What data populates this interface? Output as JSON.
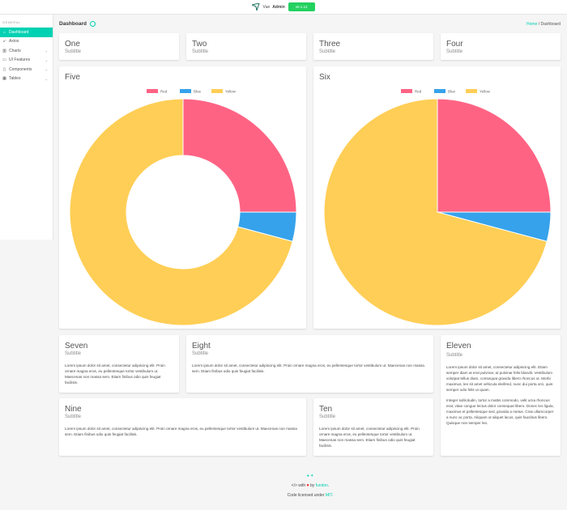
{
  "topbar": {
    "brand_prefix": "Vue",
    "brand_bold": "Admin",
    "version": "v0.1.12"
  },
  "sidebar": {
    "section": "GENERAL",
    "items": [
      {
        "label": "Dashboard",
        "icon": "home-icon",
        "active": true
      },
      {
        "label": "Axios",
        "icon": "rocket-icon"
      },
      {
        "label": "Charts",
        "icon": "bar-chart-icon",
        "expandable": true
      },
      {
        "label": "UI Features",
        "icon": "laptop-icon",
        "expandable": true
      },
      {
        "label": "Components",
        "icon": "cube-icon",
        "expandable": true
      },
      {
        "label": "Tables",
        "icon": "table-icon",
        "expandable": true
      }
    ]
  },
  "header": {
    "title": "Dashboard",
    "breadcrumb": {
      "home": "Home",
      "sep": " / ",
      "current": "Dashboard"
    }
  },
  "cards": {
    "one": {
      "title": "One",
      "subtitle": "Subtitle"
    },
    "two": {
      "title": "Two",
      "subtitle": "Subtitle"
    },
    "three": {
      "title": "Three",
      "subtitle": "Subtitle"
    },
    "four": {
      "title": "Four",
      "subtitle": "Subtitle"
    },
    "five": {
      "title": "Five"
    },
    "six": {
      "title": "Six"
    },
    "seven": {
      "title": "Seven",
      "subtitle": "Subtitle",
      "text": "Lorem ipsum dolor sit amet, consectetur adipiscing elit. Proin ornare magna eros, eu pellentesque tortor vestibulum ut. Maecenas non massa sem. Etiam finibus odio quis feugiat facilisis."
    },
    "eight": {
      "title": "Eight",
      "subtitle": "Subtitle",
      "text": "Lorem ipsum dolor sit amet, consectetur adipiscing elit. Proin ornare magna eros, eu pellentesque tortor vestibulum ut. Maecenas non massa sem. Etiam finibus odio quis feugiat facilisis."
    },
    "nine": {
      "title": "Nine",
      "subtitle": "Subtitle",
      "text": "Lorem ipsum dolor sit amet, consectetur adipiscing elit. Proin ornare magna eros, eu pellentesque tortor vestibulum ut. Maecenas non massa sem. Etiam finibus odio quis feugiat facilisis."
    },
    "ten": {
      "title": "Ten",
      "subtitle": "Subtitle",
      "text": "Lorem ipsum dolor sit amet, consectetur adipiscing elit. Proin ornare magna eros, eu pellentesque tortor vestibulum ut. Maecenas non massa sem. Etiam finibus odio quis feugiat facilisis."
    },
    "eleven": {
      "title": "Eleven",
      "subtitle": "Subtitle",
      "text1": "Lorem ipsum dolor sit amet, consectetur adipiscing elit. Etiam semper diam at erat pulvinar, at pulvinar felis blandit. Vestibulum volutpat tellus diam, consequat gravida libero rhoncus ut. Morbi maximus, leo sit amet vehicula eleifend, nunc dui porta orci, quis semper odio felis ut quam.",
      "text2": "Integer sollicitudin, tortor a mattis commodo, velit urna rhoncus erat, vitae congue lectus dolor consequat libero. Donec leo ligula, maximus et pellentesque sed, gravida a metus. Cras ullamcorper a nunc ac porta. Aliquam ut aliquet lacus, quis faucibus libero. Quisque non semper leo."
    }
  },
  "chart_data": [
    {
      "type": "doughnut",
      "categories": [
        "Red",
        "Blue",
        "Yellow"
      ],
      "values": [
        300,
        50,
        850
      ],
      "colors": [
        "#ff6384",
        "#36a2eb",
        "#ffce56"
      ],
      "legend": "top"
    },
    {
      "type": "pie",
      "categories": [
        "Red",
        "Blue",
        "Yellow"
      ],
      "values": [
        300,
        50,
        850
      ],
      "colors": [
        "#ff6384",
        "#36a2eb",
        "#ffce56"
      ],
      "legend": "top"
    }
  ],
  "footer": {
    "with": "with",
    "by": "by",
    "author": "fundon",
    "period": ".",
    "license_prefix": "Code licensed under ",
    "license": "MIT",
    "license_suffix": "."
  }
}
